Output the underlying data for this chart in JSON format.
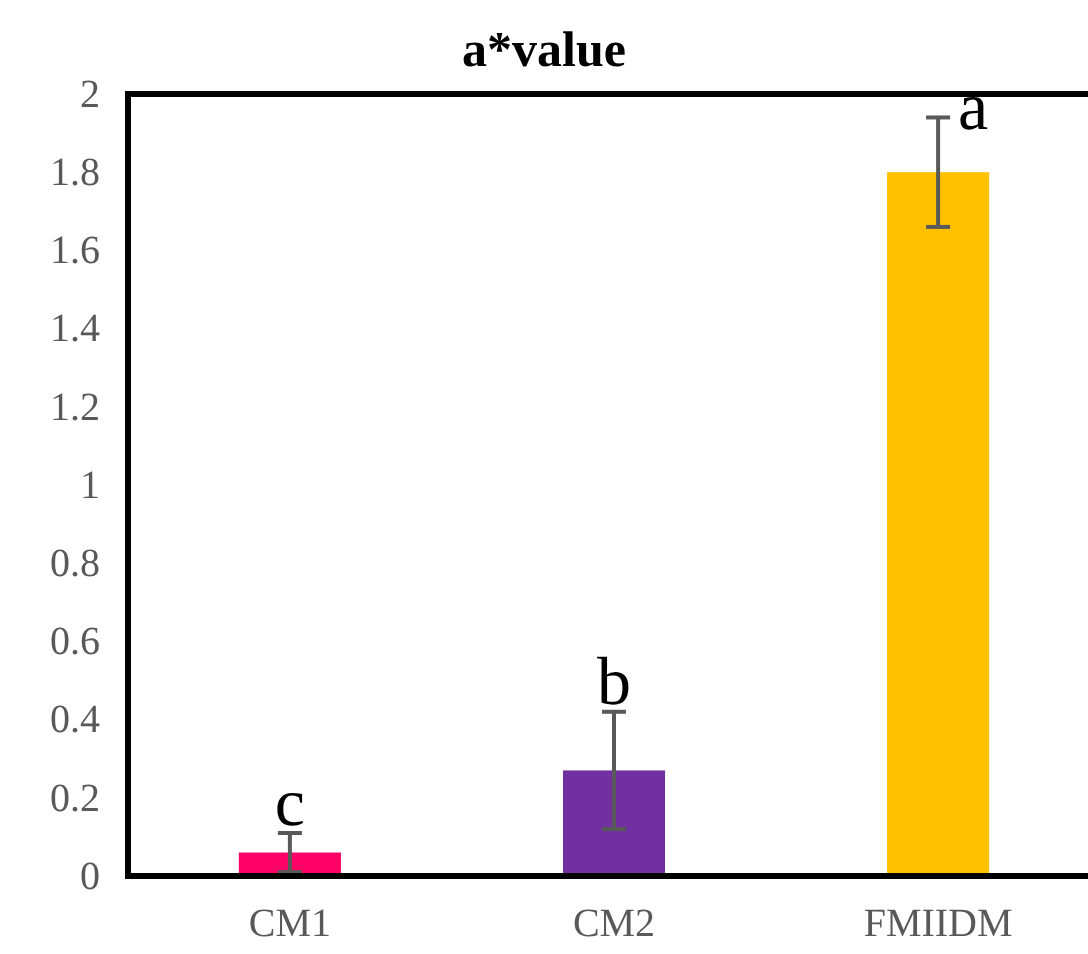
{
  "chart_data": {
    "type": "bar",
    "title": "a*value",
    "categories": [
      "CM1",
      "CM2",
      "FMIIDM"
    ],
    "values": [
      0.06,
      0.27,
      1.8
    ],
    "colors": [
      "#ff0066",
      "#7030a0",
      "#ffc000"
    ],
    "errors": [
      0.05,
      0.15,
      0.14
    ],
    "ylim": [
      0,
      2
    ],
    "yticks": [
      0,
      0.2,
      0.4,
      0.6,
      0.8,
      1,
      1.2,
      1.4,
      1.6,
      1.8,
      2
    ],
    "annotations": [
      {
        "text": "c",
        "x": "CM1",
        "y": 0.13
      },
      {
        "text": "b",
        "x": "CM2",
        "y": 0.44
      },
      {
        "text": "a",
        "x": "FMIIDM",
        "y": 1.91
      }
    ],
    "grid": false
  }
}
